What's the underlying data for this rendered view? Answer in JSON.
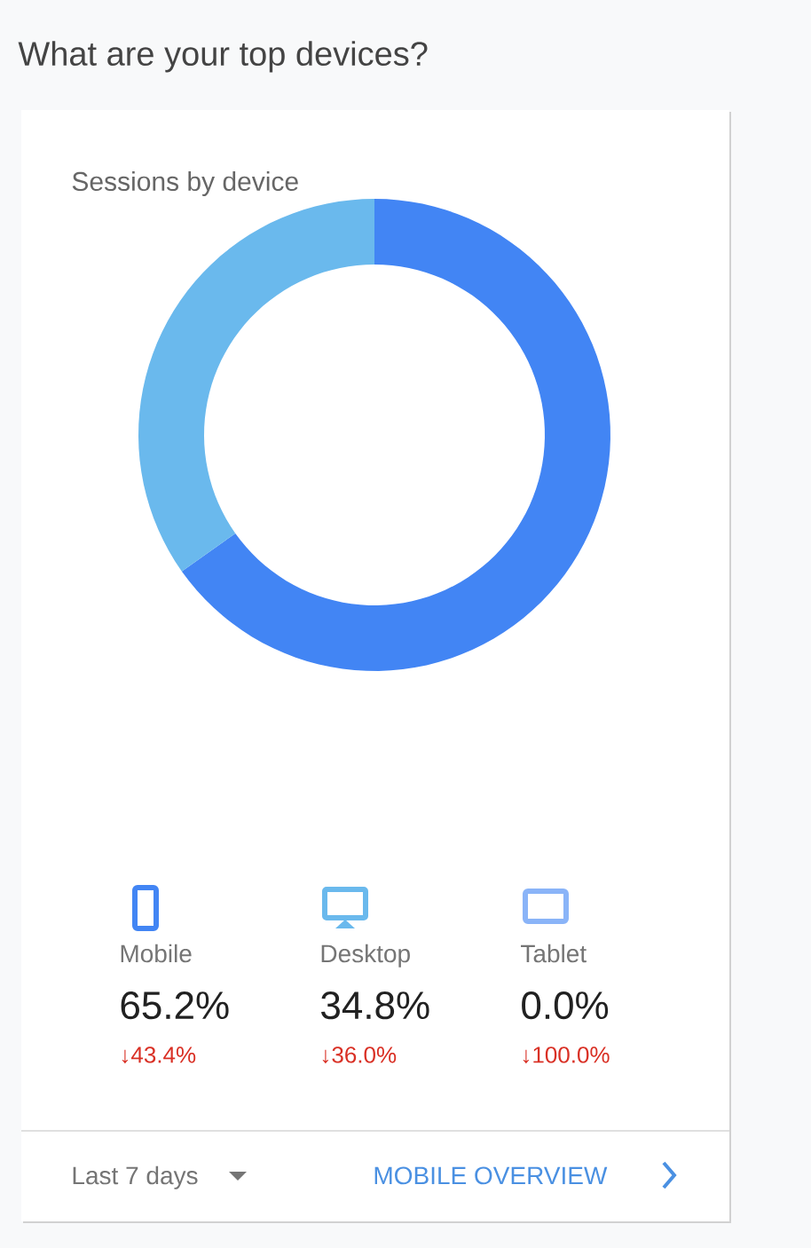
{
  "chart_data": {
    "type": "donut",
    "title": "What are your top devices?",
    "subtitle": "Sessions by device",
    "categories": [
      "Mobile",
      "Desktop",
      "Tablet"
    ],
    "values": [
      65.2,
      34.8,
      0.0
    ],
    "value_labels": [
      "65.2%",
      "34.8%",
      "0.0%"
    ],
    "colors": [
      "#4285f4",
      "#6ab9ed",
      "#8ab4f8"
    ],
    "legend": "bottom",
    "annotations": [
      "↓43.4%",
      "↓36.0%",
      "↓100.0%",
      "Last 7 days",
      "MOBILE OVERVIEW"
    ]
  }
}
